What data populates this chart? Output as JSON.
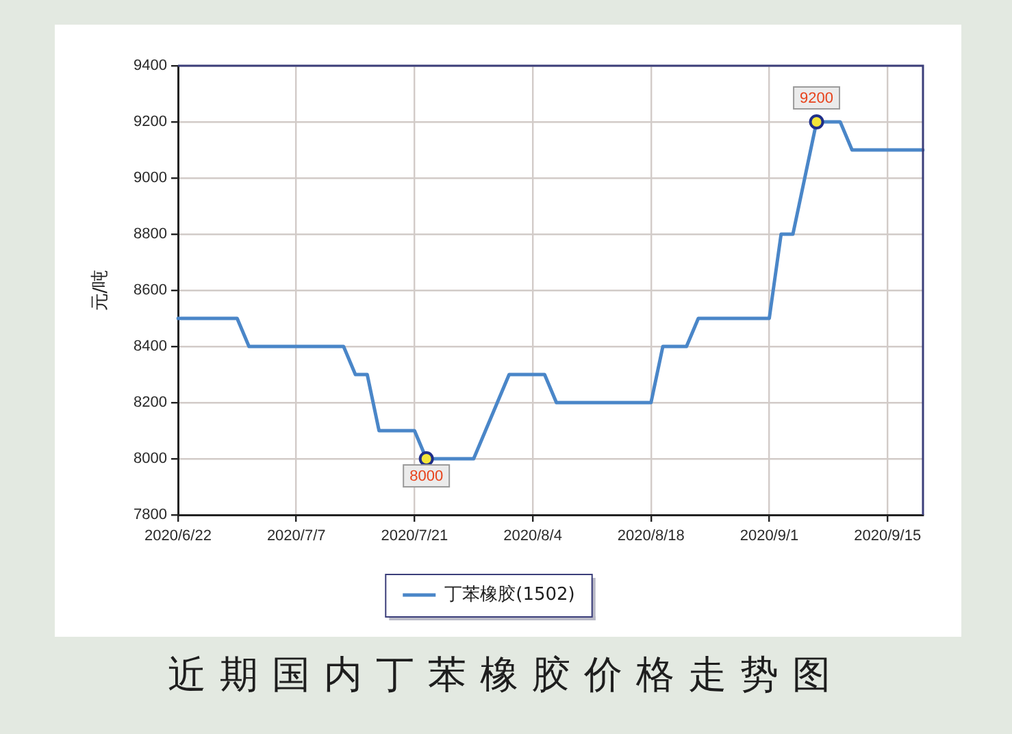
{
  "chart_data": {
    "type": "line",
    "title": "近期国内丁苯橡胶价格走势图",
    "ylabel": "元/吨",
    "categories": [
      "2020/6/22",
      null,
      null,
      null,
      null,
      null,
      null,
      null,
      null,
      null,
      "2020/7/7",
      null,
      null,
      null,
      null,
      null,
      null,
      null,
      null,
      null,
      "2020/7/21",
      null,
      null,
      null,
      null,
      null,
      null,
      null,
      null,
      null,
      "2020/8/4",
      null,
      null,
      null,
      null,
      null,
      null,
      null,
      null,
      null,
      "2020/8/18",
      null,
      null,
      null,
      null,
      null,
      null,
      null,
      null,
      null,
      "2020/9/1",
      null,
      null,
      null,
      null,
      null,
      null,
      null,
      null,
      null,
      "2020/9/15",
      null,
      null,
      null
    ],
    "series": [
      {
        "name": "丁苯橡胶(1502)",
        "color": "#4a86c8",
        "values": [
          8500,
          8500,
          8500,
          8500,
          8500,
          8500,
          8400,
          8400,
          8400,
          8400,
          8400,
          8400,
          8400,
          8400,
          8400,
          8300,
          8300,
          8100,
          8100,
          8100,
          8100,
          8000,
          8000,
          8000,
          8000,
          8000,
          8100,
          8200,
          8300,
          8300,
          8300,
          8300,
          8200,
          8200,
          8200,
          8200,
          8200,
          8200,
          8200,
          8200,
          8200,
          8400,
          8400,
          8400,
          8500,
          8500,
          8500,
          8500,
          8500,
          8500,
          8500,
          8800,
          8800,
          9000,
          9200,
          9200,
          9200,
          9100,
          9100,
          9100,
          9100,
          9100,
          9100,
          9100
        ],
        "value_labels": [
          null,
          null,
          null,
          null,
          null,
          null,
          null,
          null,
          null,
          null,
          null,
          null,
          null,
          null,
          null,
          null,
          null,
          null,
          null,
          null,
          null,
          "8000",
          null,
          null,
          null,
          null,
          null,
          null,
          null,
          null,
          null,
          null,
          null,
          null,
          null,
          null,
          null,
          null,
          null,
          null,
          null,
          null,
          null,
          null,
          null,
          null,
          null,
          null,
          null,
          null,
          null,
          null,
          null,
          null,
          "9200",
          null,
          null,
          null,
          null,
          null,
          null,
          null,
          null,
          null
        ]
      }
    ],
    "ylim": [
      7800,
      9400
    ],
    "yticks": [
      7800,
      8000,
      8200,
      8400,
      8600,
      8800,
      9000,
      9200,
      9400
    ],
    "grid": true,
    "legend": "bottom"
  }
}
